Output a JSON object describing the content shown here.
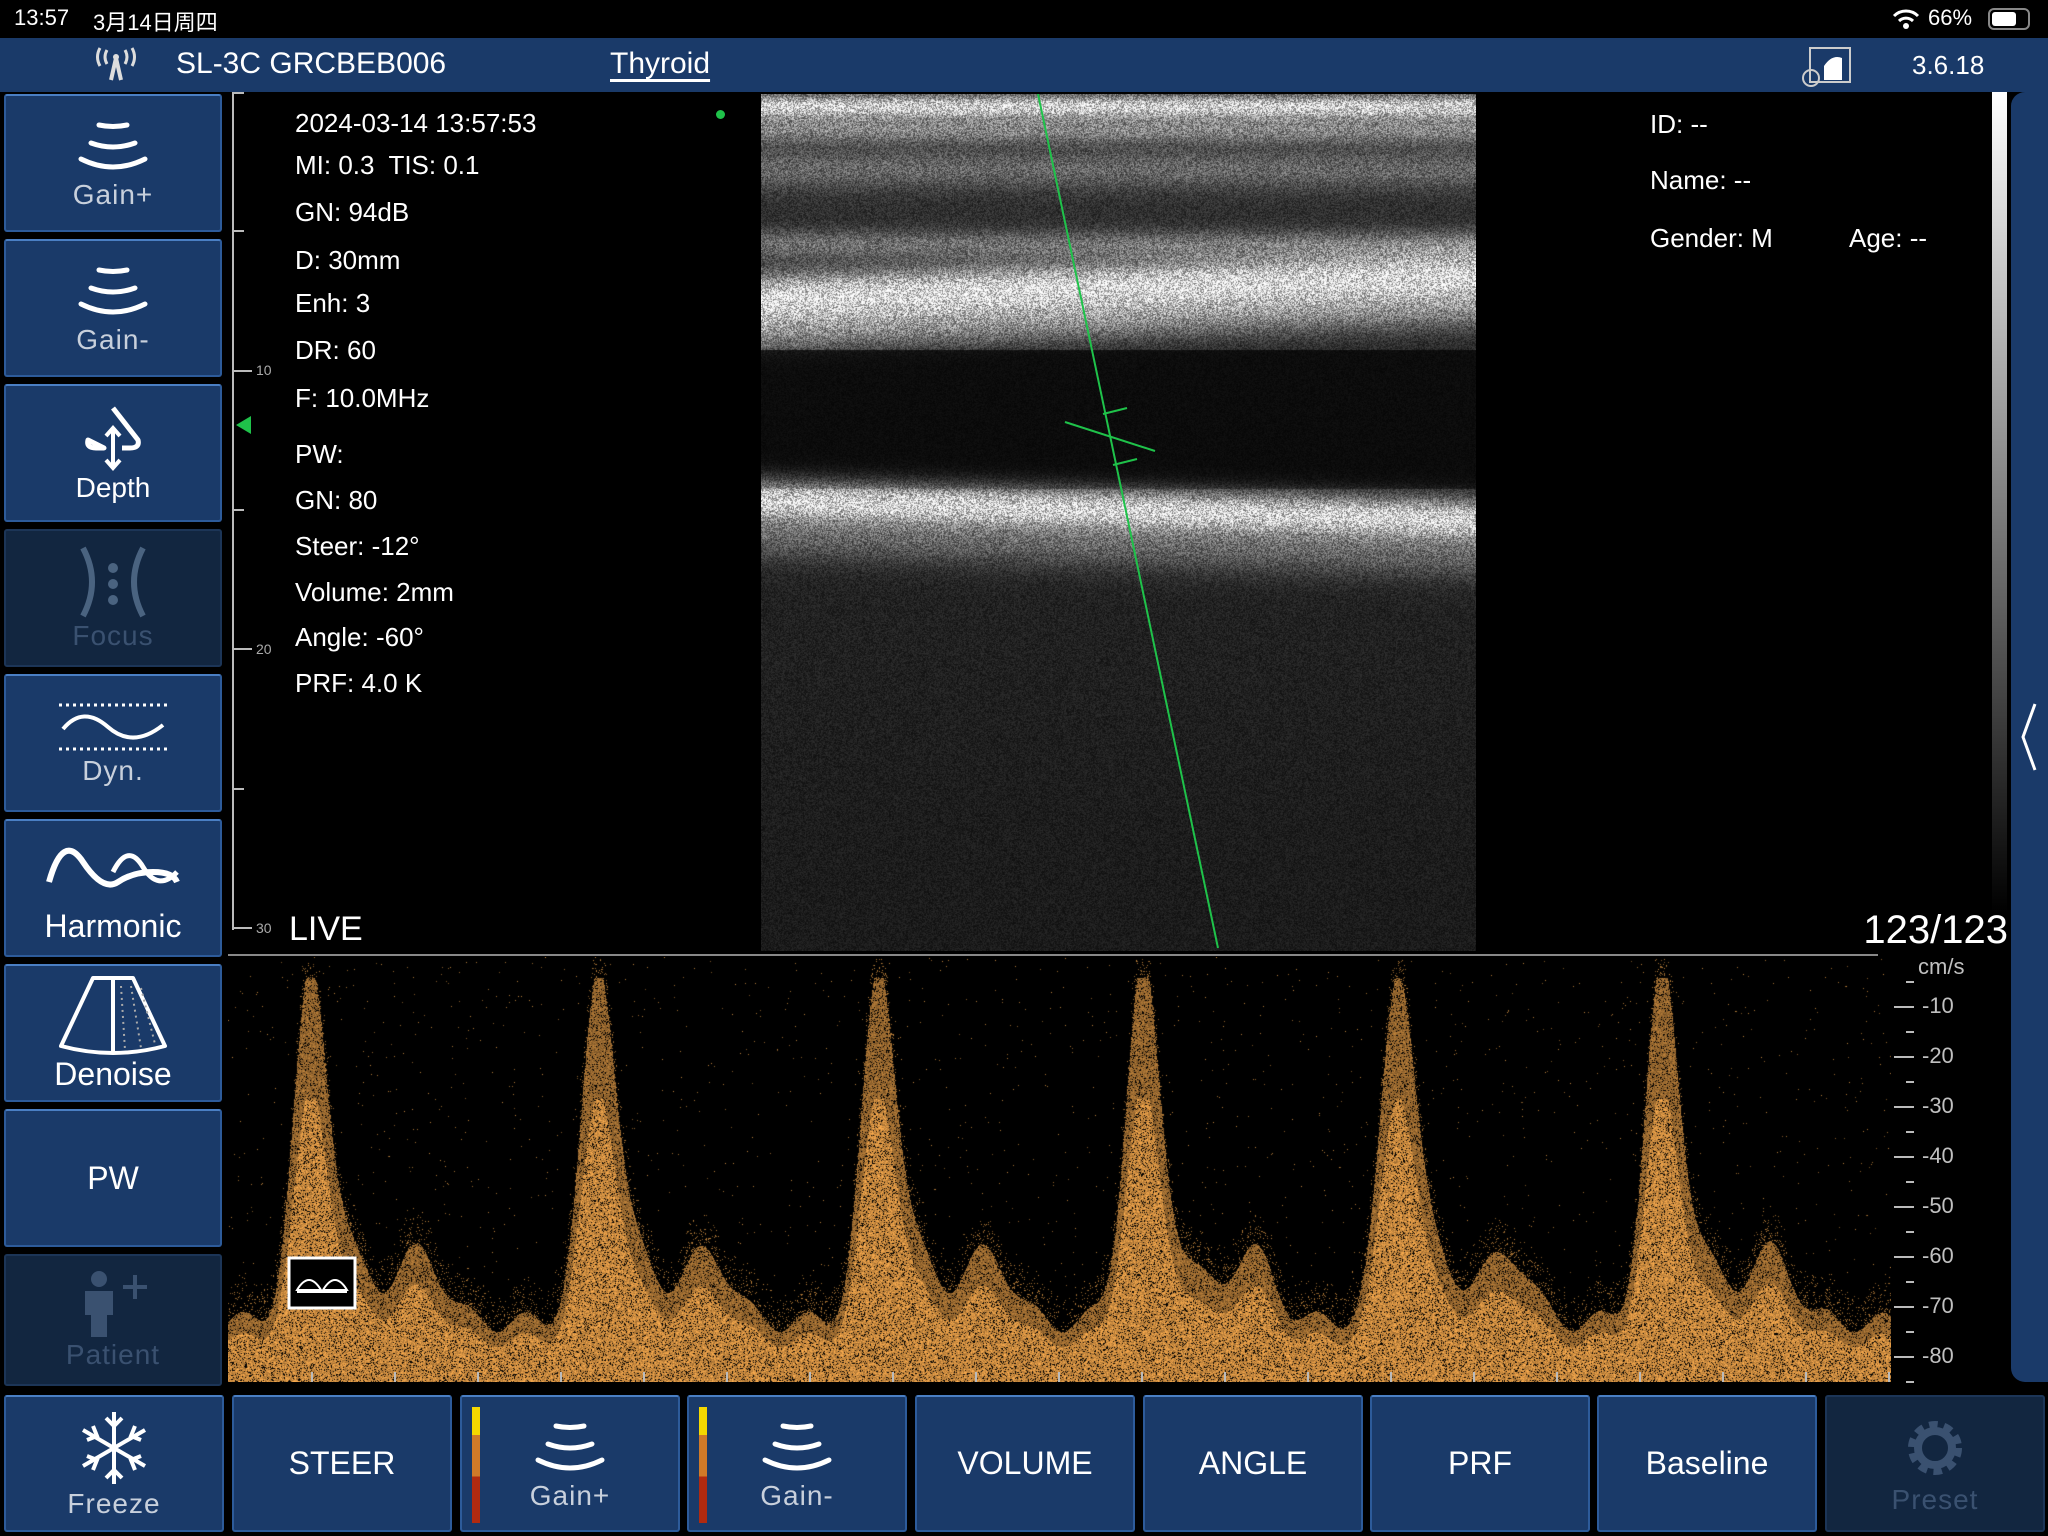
{
  "status_bar": {
    "time": "13:57",
    "date": "3月14日周四",
    "battery": "66%"
  },
  "header": {
    "device": "SL-3C GRCBEB006",
    "preset": "Thyroid",
    "version": "3.6.18"
  },
  "sidebar": {
    "items": [
      {
        "label": "Gain+",
        "icon": "gain-plus-icon",
        "enabled": true
      },
      {
        "label": "Gain-",
        "icon": "gain-minus-icon",
        "enabled": true
      },
      {
        "label": "Depth",
        "icon": "depth-icon",
        "enabled": true
      },
      {
        "label": "Focus",
        "icon": "focus-icon",
        "enabled": false
      },
      {
        "label": "Dyn.",
        "icon": "dynamic-range-icon",
        "enabled": true
      },
      {
        "label": "Harmonic",
        "icon": "harmonic-icon",
        "enabled": true
      },
      {
        "label": "Denoise",
        "icon": "denoise-icon",
        "enabled": true
      },
      {
        "label": "PW",
        "icon": "",
        "enabled": true
      },
      {
        "label": "Patient",
        "icon": "patient-icon",
        "enabled": false
      }
    ]
  },
  "bottom_bar": {
    "items": [
      {
        "label": "Freeze",
        "icon": "snowflake-icon",
        "enabled": true
      },
      {
        "label": "STEER",
        "enabled": true
      },
      {
        "label": "Gain+",
        "icon": "gain-plus-icon",
        "enabled": true
      },
      {
        "label": "Gain-",
        "icon": "gain-minus-icon",
        "enabled": true
      },
      {
        "label": "VOLUME",
        "enabled": true
      },
      {
        "label": "ANGLE",
        "enabled": true
      },
      {
        "label": "PRF",
        "enabled": true
      },
      {
        "label": "Baseline",
        "enabled": true
      },
      {
        "label": "Preset",
        "icon": "gear-icon",
        "enabled": false
      }
    ]
  },
  "image_info": {
    "datetime": "2024-03-14 13:57:53",
    "mi_tis": "MI: 0.3  TIS: 0.1",
    "gn": "GN: 94dB",
    "depth": "D: 30mm",
    "enh": "Enh: 3",
    "dr": "DR: 60",
    "freq": "F: 10.0MHz",
    "pw_title": "PW:",
    "pw_gn": "GN: 80",
    "steer": "Steer: -12°",
    "volume": "Volume: 2mm",
    "angle": "Angle: -60°",
    "prf": "PRF: 4.0 K",
    "mode": "LIVE",
    "frame": "123/123"
  },
  "patient": {
    "id": "ID: --",
    "name": "Name: --",
    "gender": "Gender: M",
    "age": "Age: --"
  },
  "depth_ruler": {
    "labels": [
      "10",
      "20",
      "30"
    ]
  },
  "velocity_scale": {
    "unit": "cm/s",
    "labels": [
      "-10",
      "-20",
      "-30",
      "-40",
      "-50",
      "-60",
      "-70",
      "-80"
    ]
  },
  "colors": {
    "header": "#1a3a69",
    "button": "#1a3a69",
    "guide_line": "#1fc24a",
    "spectrum": "#e8a040"
  }
}
